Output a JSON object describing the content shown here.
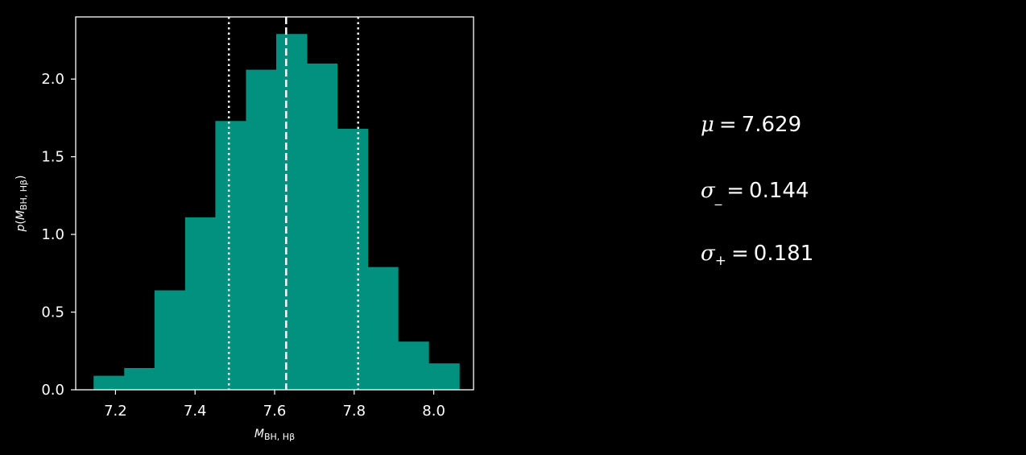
{
  "chart_data": {
    "type": "bar",
    "xlabel": "M_BH, Hβ",
    "ylabel": "p(M_BH, Hβ)",
    "xlim": [
      7.1,
      8.1
    ],
    "ylim": [
      0.0,
      2.4
    ],
    "xticks": [
      "7.2",
      "7.4",
      "7.6",
      "7.8",
      "8.0"
    ],
    "yticks": [
      "0.0",
      "0.5",
      "1.0",
      "1.5",
      "2.0"
    ],
    "bin_edges": [
      7.145,
      7.222,
      7.298,
      7.375,
      7.451,
      7.528,
      7.604,
      7.681,
      7.757,
      7.834,
      7.91,
      7.987,
      8.064
    ],
    "values": [
      0.09,
      0.14,
      0.64,
      1.11,
      1.73,
      2.06,
      2.29,
      2.1,
      1.68,
      0.79,
      0.31,
      0.17
    ],
    "bar_color": "#03917f",
    "median_line": 7.629,
    "lower_line": 7.485,
    "upper_line": 7.81,
    "grid": false
  },
  "stats": {
    "mu_symbol": "μ",
    "mu_value": "7.629",
    "sigma_minus_symbol": "σ",
    "sigma_minus_sub": "_",
    "sigma_minus_value": "0.144",
    "sigma_plus_symbol": "σ",
    "sigma_plus_sub": "+",
    "sigma_plus_value": "0.181",
    "equals": "="
  }
}
